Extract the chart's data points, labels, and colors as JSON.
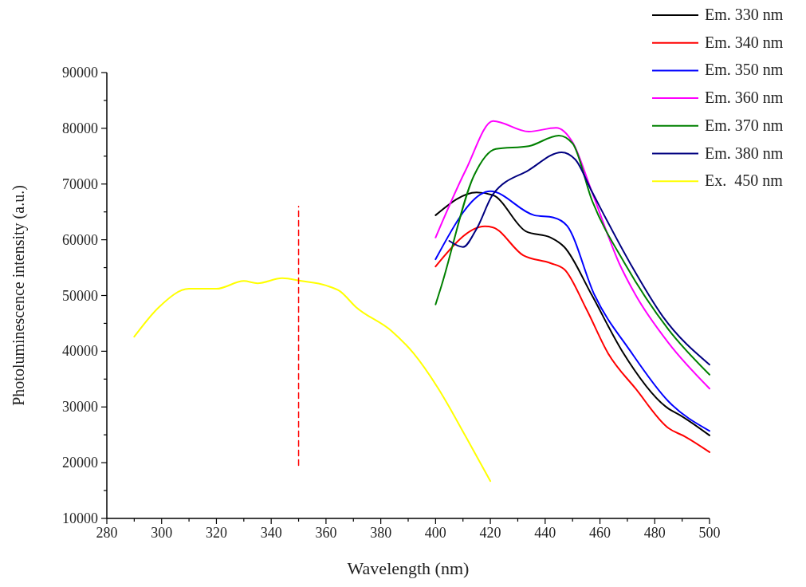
{
  "chart_data": {
    "type": "line",
    "xlabel": "Wavelength (nm)",
    "ylabel": "Photoluminescence intensity (a.u.)",
    "xlim": [
      280,
      500
    ],
    "xticks": [
      280,
      {
        "value": 290,
        "label": null
      },
      300,
      {
        "value": 310,
        "label": null
      },
      320,
      {
        "value": 330,
        "label": null
      },
      340,
      {
        "value": 350,
        "label": null
      },
      360,
      {
        "value": 370,
        "label": null
      },
      380,
      {
        "value": 390,
        "label": null
      },
      400,
      {
        "value": 410,
        "label": null
      },
      420,
      {
        "value": 430,
        "label": null
      },
      440,
      {
        "value": 450,
        "label": null
      },
      460,
      {
        "value": 470,
        "label": null
      },
      480,
      {
        "value": 490,
        "label": null
      },
      500
    ],
    "ylim": [
      10000,
      90000
    ],
    "yticks": [
      10000,
      {
        "value": 15000,
        "label": null
      },
      20000,
      {
        "value": 25000,
        "label": null
      },
      30000,
      {
        "value": 35000,
        "label": null
      },
      40000,
      {
        "value": 45000,
        "label": null
      },
      50000,
      {
        "value": 55000,
        "label": null
      },
      60000,
      {
        "value": 65000,
        "label": null
      },
      70000,
      {
        "value": 75000,
        "label": null
      },
      80000,
      {
        "value": 85000,
        "label": null
      },
      90000
    ],
    "grid": false,
    "legend": "top right",
    "marker": "none",
    "line_style": "solid",
    "series": [
      {
        "name": "Em. 330 nm",
        "color": "#000000",
        "x": [
          400,
          415,
          421,
          433,
          442,
          447,
          457,
          468,
          485,
          489,
          500
        ],
        "values": [
          64400,
          68500,
          68000,
          61500,
          60400,
          58700,
          50100,
          40100,
          29700,
          28600,
          24900
        ]
      },
      {
        "name": "Em. 340 nm",
        "color": "#ff0000",
        "x": [
          400,
          418,
          421,
          432,
          442,
          447,
          455,
          463,
          473,
          485,
          491,
          500
        ],
        "values": [
          55200,
          62400,
          62200,
          57200,
          55800,
          54700,
          47600,
          39600,
          33300,
          26200,
          24700,
          21900
        ]
      },
      {
        "name": "Em. 350 nm",
        "color": "#0000ff",
        "x": [
          400,
          420,
          436,
          443,
          448,
          458,
          471,
          485,
          500
        ],
        "values": [
          56500,
          68700,
          64400,
          64000,
          62500,
          50100,
          40100,
          31000,
          25700
        ]
      },
      {
        "name": "Em. 360 nm",
        "color": "#ff00ff",
        "x": [
          400,
          411,
          421,
          434,
          444,
          450,
          457,
          467,
          473,
          485,
          500
        ],
        "values": [
          60400,
          72500,
          81300,
          79400,
          80100,
          77500,
          68700,
          55800,
          50100,
          41500,
          33300
        ]
      },
      {
        "name": "Em. 370 nm",
        "color": "#008000",
        "x": [
          400,
          402,
          414,
          422,
          434,
          445,
          450,
          457,
          469,
          485,
          500
        ],
        "values": [
          48400,
          51500,
          71500,
          76300,
          76800,
          78700,
          77300,
          67200,
          55800,
          43900,
          35800
        ]
      },
      {
        "name": "Em. 380 nm",
        "color": "#000080",
        "x": [
          405,
          410,
          415,
          421,
          434,
          446,
          451,
          457,
          471,
          483,
          500
        ],
        "values": [
          59800,
          58700,
          62000,
          68200,
          72500,
          75700,
          74400,
          68700,
          55800,
          46200,
          37600
        ]
      },
      {
        "name": "Ex.  450 nm",
        "color": "#ffff00",
        "x": [
          290,
          299,
          310,
          320,
          330,
          335,
          344,
          351,
          360,
          365,
          371,
          384,
          392,
          401,
          411,
          420
        ],
        "values": [
          42600,
          47900,
          51200,
          51200,
          52600,
          52200,
          53100,
          52600,
          51800,
          50800,
          47900,
          43600,
          39600,
          33300,
          24700,
          16700
        ]
      },
      {
        "color": "#ff0000",
        "line_style": "dashed",
        "x": [
          350,
          350
        ],
        "values": [
          19500,
          66000
        ]
      }
    ]
  }
}
